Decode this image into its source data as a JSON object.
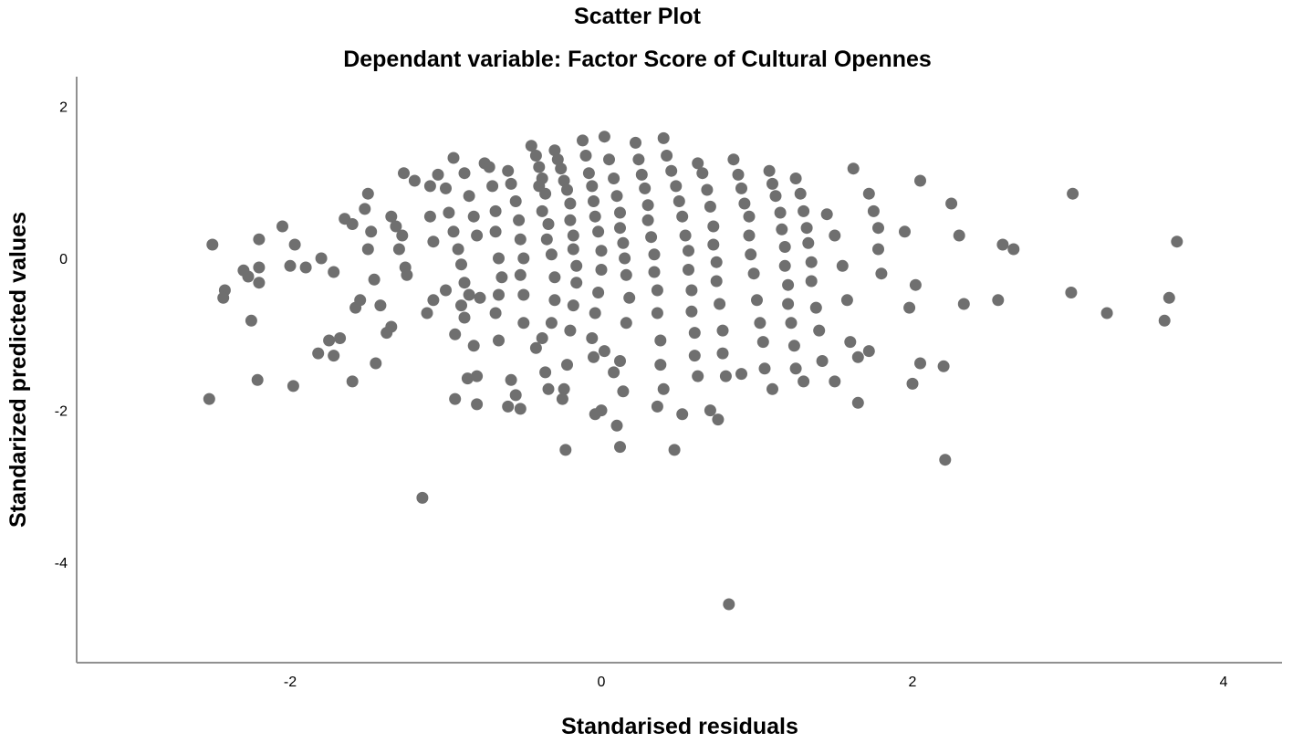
{
  "chart_data": {
    "type": "scatter",
    "title": "Scatter Plot",
    "subtitle": "Dependant variable: Factor Score of Cultural Opennes",
    "xlabel": "Standarised residuals",
    "ylabel": "Standarized predicted values",
    "xlim": [
      -3.35,
      4.4
    ],
    "ylim": [
      -5.3,
      2.4
    ],
    "xticks": [
      -2,
      0,
      2,
      4
    ],
    "yticks": [
      2,
      0,
      -2,
      -4
    ],
    "grid": false,
    "marker_color": "#6f6f6f",
    "axis_color": "#909090",
    "points": [
      [
        -2.5,
        0.18
      ],
      [
        -2.42,
        -0.42
      ],
      [
        -2.43,
        -0.52
      ],
      [
        -2.3,
        -0.16
      ],
      [
        -2.27,
        -0.24
      ],
      [
        -2.2,
        0.25
      ],
      [
        -2.2,
        -0.12
      ],
      [
        -2.2,
        -0.32
      ],
      [
        -2.25,
        -0.82
      ],
      [
        -2.21,
        -1.6
      ],
      [
        -2.52,
        -1.85
      ],
      [
        -2.05,
        0.42
      ],
      [
        -2.0,
        -0.1
      ],
      [
        -1.97,
        0.18
      ],
      [
        -1.9,
        -0.12
      ],
      [
        -1.98,
        -1.68
      ],
      [
        -1.8,
        0.0
      ],
      [
        -1.72,
        -0.18
      ],
      [
        -1.65,
        0.52
      ],
      [
        -1.6,
        0.45
      ],
      [
        -1.55,
        -0.55
      ],
      [
        -1.58,
        -0.65
      ],
      [
        -1.5,
        0.85
      ],
      [
        -1.52,
        0.65
      ],
      [
        -1.48,
        0.35
      ],
      [
        -1.5,
        0.12
      ],
      [
        -1.46,
        -0.28
      ],
      [
        -1.42,
        -0.62
      ],
      [
        -1.75,
        -1.08
      ],
      [
        -1.72,
        -1.28
      ],
      [
        -1.82,
        -1.25
      ],
      [
        -1.68,
        -1.05
      ],
      [
        -1.6,
        -1.62
      ],
      [
        -1.45,
        -1.38
      ],
      [
        -1.35,
        0.55
      ],
      [
        -1.32,
        0.42
      ],
      [
        -1.28,
        0.3
      ],
      [
        -1.3,
        0.12
      ],
      [
        -1.26,
        -0.12
      ],
      [
        -1.25,
        -0.22
      ],
      [
        -1.35,
        -0.9
      ],
      [
        -1.38,
        -0.98
      ],
      [
        -1.27,
        1.12
      ],
      [
        -1.2,
        1.02
      ],
      [
        -1.1,
        0.55
      ],
      [
        -1.08,
        0.22
      ],
      [
        -1.12,
        -0.72
      ],
      [
        -1.08,
        -0.55
      ],
      [
        -1.0,
        -0.42
      ],
      [
        -1.15,
        -3.15
      ],
      [
        -1.1,
        0.95
      ],
      [
        -1.05,
        1.1
      ],
      [
        -1.0,
        0.92
      ],
      [
        -0.98,
        0.6
      ],
      [
        -0.95,
        0.35
      ],
      [
        -0.92,
        0.12
      ],
      [
        -0.9,
        -0.08
      ],
      [
        -0.88,
        -0.32
      ],
      [
        -0.85,
        -0.48
      ],
      [
        -0.9,
        -0.62
      ],
      [
        -0.88,
        -0.78
      ],
      [
        -0.94,
        -1.0
      ],
      [
        -0.95,
        1.32
      ],
      [
        -0.88,
        1.12
      ],
      [
        -0.85,
        0.82
      ],
      [
        -0.82,
        0.55
      ],
      [
        -0.8,
        0.3
      ],
      [
        -0.78,
        -0.52
      ],
      [
        -0.82,
        -1.15
      ],
      [
        -0.86,
        -1.58
      ],
      [
        -0.94,
        -1.85
      ],
      [
        -0.8,
        -1.55
      ],
      [
        -0.8,
        -1.92
      ],
      [
        -0.75,
        1.25
      ],
      [
        -0.72,
        1.2
      ],
      [
        -0.7,
        0.95
      ],
      [
        -0.68,
        0.62
      ],
      [
        -0.68,
        0.35
      ],
      [
        -0.66,
        0.0
      ],
      [
        -0.64,
        -0.25
      ],
      [
        -0.66,
        -0.48
      ],
      [
        -0.68,
        -0.72
      ],
      [
        -0.66,
        -1.08
      ],
      [
        -0.6,
        1.15
      ],
      [
        -0.58,
        0.98
      ],
      [
        -0.55,
        0.75
      ],
      [
        -0.53,
        0.5
      ],
      [
        -0.52,
        0.25
      ],
      [
        -0.5,
        0.0
      ],
      [
        -0.52,
        -0.22
      ],
      [
        -0.5,
        -0.48
      ],
      [
        -0.5,
        -0.85
      ],
      [
        -0.58,
        -1.6
      ],
      [
        -0.6,
        -1.95
      ],
      [
        -0.55,
        -1.8
      ],
      [
        -0.52,
        -1.98
      ],
      [
        -0.45,
        1.48
      ],
      [
        -0.42,
        1.35
      ],
      [
        -0.4,
        1.2
      ],
      [
        -0.38,
        1.05
      ],
      [
        -0.4,
        0.95
      ],
      [
        -0.36,
        0.85
      ],
      [
        -0.38,
        0.62
      ],
      [
        -0.34,
        0.45
      ],
      [
        -0.35,
        0.25
      ],
      [
        -0.32,
        0.05
      ],
      [
        -0.3,
        -0.25
      ],
      [
        -0.3,
        -0.55
      ],
      [
        -0.32,
        -0.85
      ],
      [
        -0.42,
        -1.18
      ],
      [
        -0.38,
        -1.05
      ],
      [
        -0.36,
        -1.5
      ],
      [
        -0.34,
        -1.72
      ],
      [
        -0.3,
        1.42
      ],
      [
        -0.28,
        1.3
      ],
      [
        -0.26,
        1.18
      ],
      [
        -0.24,
        1.02
      ],
      [
        -0.22,
        0.9
      ],
      [
        -0.2,
        0.72
      ],
      [
        -0.2,
        0.5
      ],
      [
        -0.18,
        0.3
      ],
      [
        -0.18,
        0.12
      ],
      [
        -0.16,
        -0.1
      ],
      [
        -0.16,
        -0.32
      ],
      [
        -0.18,
        -0.62
      ],
      [
        -0.2,
        -0.95
      ],
      [
        -0.22,
        -1.4
      ],
      [
        -0.24,
        -1.72
      ],
      [
        -0.23,
        -2.52
      ],
      [
        -0.25,
        -1.85
      ],
      [
        -0.12,
        1.55
      ],
      [
        -0.1,
        1.35
      ],
      [
        -0.08,
        1.12
      ],
      [
        -0.06,
        0.95
      ],
      [
        -0.05,
        0.75
      ],
      [
        -0.04,
        0.55
      ],
      [
        -0.02,
        0.35
      ],
      [
        0.0,
        0.1
      ],
      [
        0.0,
        -0.15
      ],
      [
        -0.02,
        -0.45
      ],
      [
        -0.04,
        -0.72
      ],
      [
        -0.06,
        -1.05
      ],
      [
        -0.05,
        -1.3
      ],
      [
        -0.04,
        -2.05
      ],
      [
        0.0,
        -2.0
      ],
      [
        0.02,
        -1.22
      ],
      [
        0.02,
        1.6
      ],
      [
        0.05,
        1.3
      ],
      [
        0.08,
        1.05
      ],
      [
        0.1,
        0.82
      ],
      [
        0.12,
        0.6
      ],
      [
        0.12,
        0.4
      ],
      [
        0.14,
        0.2
      ],
      [
        0.15,
        0.0
      ],
      [
        0.16,
        -0.22
      ],
      [
        0.18,
        -0.52
      ],
      [
        0.16,
        -0.85
      ],
      [
        0.12,
        -1.35
      ],
      [
        0.14,
        -1.75
      ],
      [
        0.1,
        -2.2
      ],
      [
        0.12,
        -2.48
      ],
      [
        0.08,
        -1.5
      ],
      [
        0.22,
        1.52
      ],
      [
        0.24,
        1.3
      ],
      [
        0.26,
        1.1
      ],
      [
        0.28,
        0.92
      ],
      [
        0.3,
        0.7
      ],
      [
        0.3,
        0.5
      ],
      [
        0.32,
        0.28
      ],
      [
        0.34,
        0.05
      ],
      [
        0.34,
        -0.18
      ],
      [
        0.36,
        -0.42
      ],
      [
        0.36,
        -0.72
      ],
      [
        0.38,
        -1.08
      ],
      [
        0.38,
        -1.4
      ],
      [
        0.4,
        -1.72
      ],
      [
        0.36,
        -1.95
      ],
      [
        0.4,
        1.58
      ],
      [
        0.42,
        1.35
      ],
      [
        0.45,
        1.15
      ],
      [
        0.48,
        0.95
      ],
      [
        0.5,
        0.75
      ],
      [
        0.52,
        0.55
      ],
      [
        0.54,
        0.3
      ],
      [
        0.56,
        0.1
      ],
      [
        0.56,
        -0.15
      ],
      [
        0.58,
        -0.42
      ],
      [
        0.58,
        -0.7
      ],
      [
        0.6,
        -0.98
      ],
      [
        0.6,
        -1.28
      ],
      [
        0.62,
        -1.55
      ],
      [
        0.52,
        -2.05
      ],
      [
        0.47,
        -2.52
      ],
      [
        0.62,
        1.25
      ],
      [
        0.65,
        1.12
      ],
      [
        0.68,
        0.9
      ],
      [
        0.7,
        0.68
      ],
      [
        0.72,
        0.42
      ],
      [
        0.72,
        0.18
      ],
      [
        0.74,
        -0.05
      ],
      [
        0.74,
        -0.3
      ],
      [
        0.76,
        -0.6
      ],
      [
        0.78,
        -0.95
      ],
      [
        0.78,
        -1.25
      ],
      [
        0.8,
        -1.55
      ],
      [
        0.7,
        -2.0
      ],
      [
        0.75,
        -2.12
      ],
      [
        0.82,
        -4.55
      ],
      [
        0.85,
        1.3
      ],
      [
        0.88,
        1.1
      ],
      [
        0.9,
        0.92
      ],
      [
        0.92,
        0.72
      ],
      [
        0.95,
        0.55
      ],
      [
        0.95,
        0.3
      ],
      [
        0.96,
        0.05
      ],
      [
        0.98,
        -0.2
      ],
      [
        1.0,
        -0.55
      ],
      [
        1.02,
        -0.85
      ],
      [
        1.04,
        -1.1
      ],
      [
        1.05,
        -1.45
      ],
      [
        0.9,
        -1.52
      ],
      [
        1.08,
        1.15
      ],
      [
        1.1,
        0.98
      ],
      [
        1.12,
        0.82
      ],
      [
        1.15,
        0.6
      ],
      [
        1.16,
        0.38
      ],
      [
        1.18,
        0.15
      ],
      [
        1.18,
        -0.1
      ],
      [
        1.2,
        -0.35
      ],
      [
        1.2,
        -0.6
      ],
      [
        1.22,
        -0.85
      ],
      [
        1.24,
        -1.15
      ],
      [
        1.25,
        -1.45
      ],
      [
        1.1,
        -1.72
      ],
      [
        1.25,
        1.05
      ],
      [
        1.28,
        0.85
      ],
      [
        1.3,
        0.62
      ],
      [
        1.32,
        0.4
      ],
      [
        1.33,
        0.2
      ],
      [
        1.35,
        -0.05
      ],
      [
        1.35,
        -0.3
      ],
      [
        1.38,
        -0.65
      ],
      [
        1.4,
        -0.95
      ],
      [
        1.42,
        -1.35
      ],
      [
        1.3,
        -1.62
      ],
      [
        1.45,
        0.58
      ],
      [
        1.5,
        0.3
      ],
      [
        1.55,
        -0.1
      ],
      [
        1.58,
        -0.55
      ],
      [
        1.6,
        -1.1
      ],
      [
        1.65,
        -1.3
      ],
      [
        1.62,
        1.18
      ],
      [
        1.65,
        -1.9
      ],
      [
        1.5,
        -1.62
      ],
      [
        1.72,
        0.85
      ],
      [
        1.75,
        0.62
      ],
      [
        1.78,
        0.4
      ],
      [
        1.78,
        0.12
      ],
      [
        1.8,
        -0.2
      ],
      [
        1.72,
        -1.22
      ],
      [
        1.95,
        0.35
      ],
      [
        1.98,
        -0.65
      ],
      [
        2.0,
        -1.65
      ],
      [
        2.02,
        -0.35
      ],
      [
        2.05,
        1.02
      ],
      [
        2.05,
        -1.38
      ],
      [
        2.2,
        -1.42
      ],
      [
        2.21,
        -2.65
      ],
      [
        2.25,
        0.72
      ],
      [
        2.3,
        0.3
      ],
      [
        2.33,
        -0.6
      ],
      [
        2.55,
        -0.55
      ],
      [
        2.58,
        0.18
      ],
      [
        2.65,
        0.12
      ],
      [
        3.03,
        0.85
      ],
      [
        3.02,
        -0.45
      ],
      [
        3.25,
        -0.72
      ],
      [
        3.62,
        -0.82
      ],
      [
        3.65,
        -0.52
      ],
      [
        3.7,
        0.22
      ]
    ]
  }
}
